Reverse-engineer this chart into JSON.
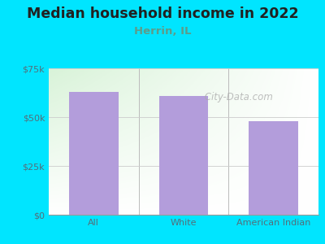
{
  "title": "Median household income in 2022",
  "subtitle": "Herrin, IL",
  "categories": [
    "All",
    "White",
    "American Indian"
  ],
  "values": [
    63000,
    61000,
    48000
  ],
  "bar_color": "#b39ddb",
  "ylim": [
    0,
    75000
  ],
  "ytick_vals": [
    0,
    25000,
    50000,
    75000
  ],
  "ytick_labels": [
    "$0",
    "$25k",
    "$50k",
    "$75k"
  ],
  "bg_color": "#00e5ff",
  "plot_bg_topleft": "#c8eec8",
  "plot_bg_other": "#f0f8f0",
  "plot_bg_white": "#f5f5f5",
  "title_color": "#212121",
  "subtitle_color": "#5d9c8a",
  "tick_color": "#546e7a",
  "watermark_text": " City-Data.com",
  "title_fontsize": 12.5,
  "subtitle_fontsize": 9.5,
  "tick_fontsize": 8
}
